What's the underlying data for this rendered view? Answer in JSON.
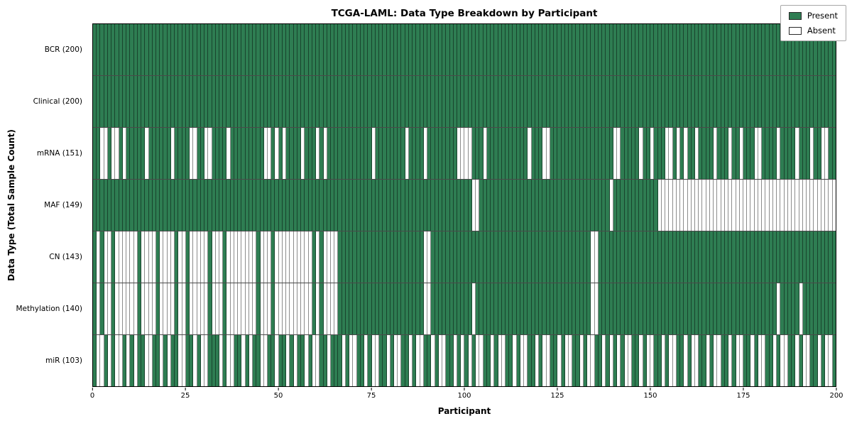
{
  "chart_data": {
    "type": "heatmap",
    "title": "TCGA-LAML: Data Type Breakdown by Participant",
    "xlabel": "Participant",
    "ylabel": "Data Type (Total Sample Count)",
    "x_range": [
      0,
      200
    ],
    "x_ticks": [
      0,
      25,
      50,
      75,
      100,
      125,
      150,
      175,
      200
    ],
    "n_participants": 200,
    "legend": [
      "Present",
      "Absent"
    ],
    "legend_position": "upper right",
    "colors": {
      "present": "#2e7d52",
      "absent": "#ffffff",
      "cell_edge": "rgba(0,0,0,0.45)",
      "row_divider": "#4a4a4a"
    },
    "rows": [
      {
        "label": "BCR (200)",
        "present_count": 200,
        "absent_positions": []
      },
      {
        "label": "Clinical (200)",
        "present_count": 200,
        "absent_positions": []
      },
      {
        "label": "mRNA (151)",
        "present_count": 151,
        "absent_positions": [
          3,
          4,
          6,
          7,
          9,
          15,
          22,
          27,
          28,
          31,
          32,
          37,
          47,
          48,
          50,
          52,
          57,
          61,
          63,
          76,
          85,
          90,
          99,
          100,
          101,
          102,
          106,
          118,
          122,
          123,
          141,
          142,
          148,
          151,
          155,
          156,
          158,
          160,
          163,
          168,
          172,
          175,
          179,
          180,
          185,
          190,
          194,
          197,
          198
        ]
      },
      {
        "label": "MAF (149)",
        "present_count": 149,
        "absent_positions": [
          103,
          104,
          140,
          153,
          154,
          155,
          156,
          157,
          158,
          159,
          160,
          161,
          162,
          163,
          164,
          165,
          166,
          167,
          168,
          169,
          170,
          171,
          172,
          173,
          174,
          175,
          176,
          177,
          178,
          179,
          180,
          181,
          182,
          183,
          184,
          185,
          186,
          187,
          188,
          189,
          190,
          191,
          192,
          193,
          194,
          195,
          196,
          197,
          198,
          199,
          200
        ]
      },
      {
        "label": "CN (143)",
        "present_count": 143,
        "absent_positions": [
          2,
          4,
          5,
          7,
          8,
          9,
          10,
          11,
          12,
          14,
          15,
          16,
          17,
          19,
          20,
          21,
          22,
          24,
          25,
          27,
          28,
          29,
          30,
          31,
          33,
          34,
          35,
          37,
          38,
          39,
          40,
          41,
          42,
          43,
          44,
          46,
          47,
          48,
          50,
          51,
          52,
          53,
          54,
          55,
          56,
          57,
          58,
          59,
          61,
          63,
          64,
          65,
          66,
          90,
          91,
          135,
          136
        ]
      },
      {
        "label": "Methylation (140)",
        "present_count": 140,
        "absent_positions": [
          2,
          4,
          5,
          7,
          8,
          9,
          10,
          11,
          12,
          14,
          15,
          16,
          17,
          19,
          20,
          21,
          22,
          24,
          25,
          27,
          28,
          29,
          30,
          31,
          33,
          34,
          35,
          37,
          38,
          39,
          40,
          41,
          42,
          43,
          44,
          46,
          47,
          48,
          50,
          51,
          52,
          53,
          54,
          55,
          56,
          57,
          58,
          59,
          61,
          63,
          64,
          65,
          66,
          90,
          91,
          103,
          135,
          136,
          185,
          191
        ]
      },
      {
        "label": "miR (103)",
        "present_count": 103,
        "absent_positions": [
          2,
          3,
          5,
          7,
          8,
          10,
          12,
          15,
          16,
          19,
          21,
          24,
          25,
          28,
          30,
          31,
          35,
          37,
          38,
          41,
          43,
          46,
          47,
          50,
          53,
          55,
          58,
          60,
          61,
          64,
          68,
          70,
          71,
          74,
          76,
          77,
          80,
          82,
          83,
          86,
          88,
          89,
          92,
          94,
          95,
          98,
          100,
          102,
          104,
          105,
          108,
          110,
          111,
          114,
          116,
          117,
          120,
          122,
          123,
          126,
          128,
          129,
          132,
          134,
          135,
          138,
          140,
          142,
          144,
          145,
          148,
          150,
          151,
          154,
          156,
          157,
          160,
          162,
          163,
          166,
          168,
          169,
          172,
          174,
          175,
          178,
          180,
          181,
          184,
          186,
          187,
          190,
          192,
          193,
          196,
          198,
          199
        ]
      }
    ]
  }
}
